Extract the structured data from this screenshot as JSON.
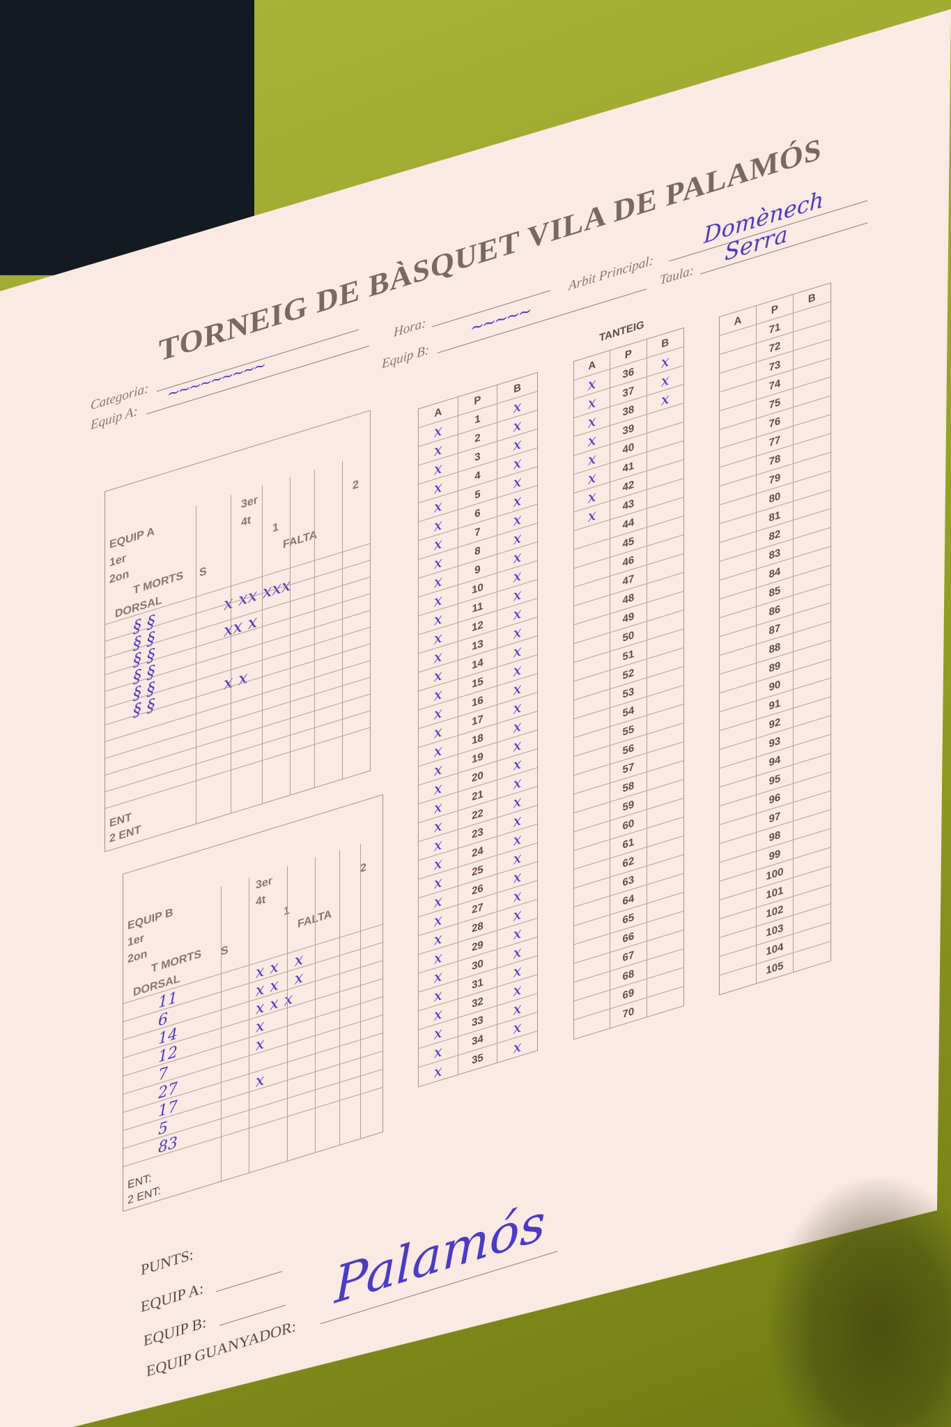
{
  "title": "TORNEIG DE BÀSQUET VILA DE PALAMÓS",
  "header": {
    "categoria_label": "Categoria:",
    "equip_a_label": "Equip A:",
    "hora_label": "Hora:",
    "equip_b_label": "Equip B:",
    "arbit_label": "Arbit Principal:",
    "arbit_value": "Domènech",
    "taula_label": "Taula:",
    "taula_value": "Serra"
  },
  "tanteig_label": "TANTEIG",
  "score_columns": [
    {
      "headers": [
        "A",
        "P",
        "B"
      ],
      "start": 1,
      "end": 35,
      "a_marked_to": 35,
      "b_marked_to": 35
    },
    {
      "headers": [
        "A",
        "P",
        "B"
      ],
      "start": 36,
      "end": 70,
      "a_marked_to": 43,
      "b_marked_to": 38
    },
    {
      "headers": [
        "A",
        "P",
        "B"
      ],
      "start": 71,
      "end": 105,
      "a_marked_to": 0,
      "b_marked_to": 0
    }
  ],
  "team_a": {
    "label": "EQUIP A",
    "period_labels": [
      "1er",
      "2on",
      "3er",
      "4t"
    ],
    "tmorts_label": "T MORTS",
    "s_label": "S",
    "falta_label": "FALTA",
    "dorsal_label": "DORSAL",
    "num_labels": [
      "1",
      "2"
    ],
    "ent_label": "ENT",
    "ent2_label": "2 ENT"
  },
  "team_b": {
    "label": "EQUIP B",
    "period_labels": [
      "1er",
      "2on",
      "3er",
      "4t"
    ],
    "tmorts_label": "T MORTS",
    "s_label": "S",
    "falta_label": "FALTA",
    "dorsal_label": "DORSAL",
    "num_labels": [
      "1",
      "2"
    ],
    "dorsals": [
      "11",
      "6",
      "14",
      "12",
      "7",
      "27",
      "17",
      "5",
      "83"
    ],
    "fouls": [
      "xx x",
      "xx x",
      "xxx",
      "x",
      "x",
      "",
      "x",
      "",
      ""
    ],
    "ent_label": "ENT:",
    "ent2_label": "2 ENT:"
  },
  "footer": {
    "punts_label": "PUNTS:",
    "equip_a_label": "EQUIP A:",
    "equip_b_label": "EQUIP B:",
    "guanyador_label": "EQUIP GUANYADOR:",
    "guanyador_value": "Palamós"
  },
  "colors": {
    "ink": "#4b3cc4",
    "background": "#9aa52a",
    "paper": "#fbe9e3"
  }
}
